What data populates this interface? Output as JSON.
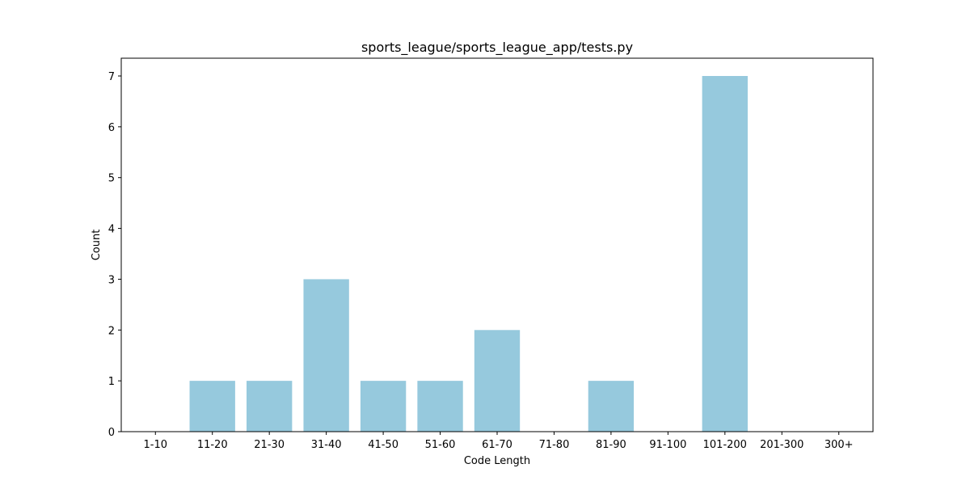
{
  "chart_data": {
    "type": "bar",
    "title": "sports_league/sports_league_app/tests.py",
    "xlabel": "Code Length",
    "ylabel": "Count",
    "categories": [
      "1-10",
      "11-20",
      "21-30",
      "31-40",
      "41-50",
      "51-60",
      "61-70",
      "71-80",
      "81-90",
      "91-100",
      "101-200",
      "201-300",
      "300+"
    ],
    "values": [
      0,
      1,
      1,
      3,
      1,
      1,
      2,
      0,
      1,
      0,
      7,
      0,
      0
    ],
    "ylim": [
      0,
      7.35
    ],
    "yticks": [
      0,
      1,
      2,
      3,
      4,
      5,
      6,
      7
    ],
    "bar_color": "#96c9dd",
    "grid": false,
    "legend": "none"
  }
}
